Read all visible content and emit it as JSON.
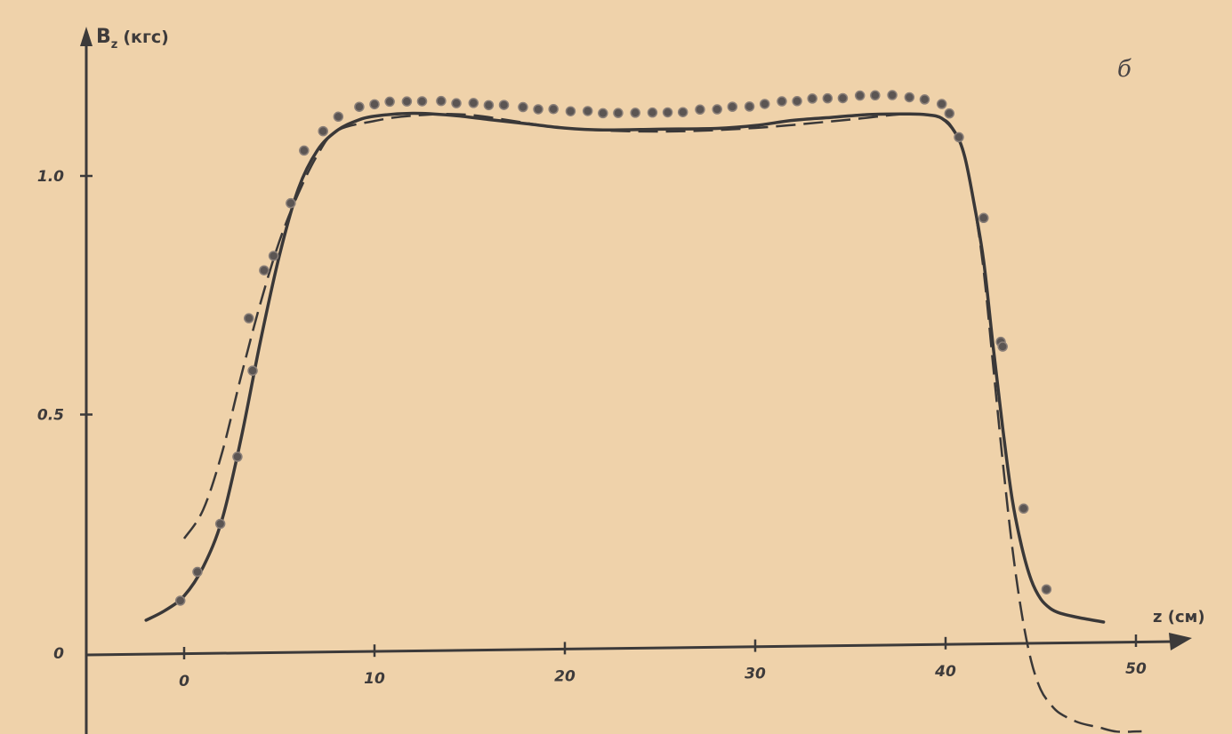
{
  "chart_data": {
    "type": "line",
    "panel_label": "б",
    "ylabel": "B",
    "ylabel_sub": "z",
    "ylabel_unit": "(кгс)",
    "xlabel": "z (см)",
    "xlim": [
      -5,
      52
    ],
    "ylim": [
      -0.17,
      1.3
    ],
    "x_ticks": [
      0,
      10,
      20,
      30,
      40,
      50
    ],
    "x_tick_labels": [
      "0",
      "10",
      "20",
      "30",
      "40",
      "50"
    ],
    "y_ticks": [
      0,
      0.5,
      1.0
    ],
    "y_tick_labels": [
      "0",
      "0.5",
      "1.0"
    ],
    "grid": false,
    "series": [
      {
        "style": "solid",
        "x": [
          -2,
          -1,
          0,
          1,
          2,
          3,
          4,
          5,
          6,
          7,
          8,
          9,
          10,
          12,
          14,
          16,
          18,
          20,
          22,
          25,
          28,
          30,
          32,
          34,
          36,
          38,
          39,
          39.8,
          40.5,
          41,
          41.5,
          42,
          42.5,
          43,
          43.5,
          44,
          44.5,
          45,
          45.5,
          46,
          47,
          48.3
        ],
        "y": [
          0.07,
          0.09,
          0.12,
          0.18,
          0.28,
          0.45,
          0.65,
          0.83,
          0.97,
          1.05,
          1.09,
          1.11,
          1.12,
          1.125,
          1.12,
          1.11,
          1.1,
          1.09,
          1.085,
          1.085,
          1.085,
          1.09,
          1.1,
          1.105,
          1.11,
          1.11,
          1.108,
          1.1,
          1.07,
          1.02,
          0.92,
          0.8,
          0.62,
          0.45,
          0.3,
          0.2,
          0.13,
          0.09,
          0.07,
          0.06,
          0.05,
          0.04
        ]
      },
      {
        "style": "dashed",
        "x": [
          0,
          1,
          2,
          3,
          4,
          5,
          6,
          7,
          8,
          10,
          12,
          15,
          20,
          25,
          30,
          35,
          38,
          39.8,
          40.5,
          41,
          41.5,
          42,
          42.5,
          43,
          43.5,
          44,
          44.5,
          45,
          45.5,
          46,
          47,
          48,
          49,
          50.3
        ],
        "y": [
          0.24,
          0.3,
          0.42,
          0.58,
          0.73,
          0.86,
          0.96,
          1.04,
          1.09,
          1.11,
          1.12,
          1.12,
          1.09,
          1.08,
          1.085,
          1.1,
          1.11,
          1.1,
          1.07,
          1.02,
          0.92,
          0.78,
          0.58,
          0.38,
          0.2,
          0.06,
          -0.04,
          -0.1,
          -0.13,
          -0.15,
          -0.17,
          -0.18,
          -0.19,
          -0.19
        ]
      },
      {
        "style": "points",
        "x": [
          -0.2,
          0.7,
          1.9,
          2.8,
          3.4,
          3.6,
          4.2,
          4.7,
          5.6,
          6.3,
          7.3,
          8.1,
          9.2,
          10.0,
          10.8,
          11.7,
          12.5,
          13.5,
          14.3,
          15.2,
          16.0,
          16.8,
          17.8,
          18.6,
          19.4,
          20.3,
          21.2,
          22.0,
          22.8,
          23.7,
          24.6,
          25.4,
          26.2,
          27.1,
          28.0,
          28.8,
          29.7,
          30.5,
          31.4,
          32.2,
          33.0,
          33.8,
          34.6,
          35.5,
          36.3,
          37.2,
          38.1,
          38.9,
          39.8,
          40.2,
          40.7,
          42.0,
          42.9,
          43.0,
          44.1,
          45.3
        ],
        "y": [
          0.11,
          0.17,
          0.27,
          0.41,
          0.7,
          0.59,
          0.8,
          0.83,
          0.94,
          1.05,
          1.09,
          1.12,
          1.14,
          1.145,
          1.15,
          1.15,
          1.15,
          1.15,
          1.145,
          1.145,
          1.14,
          1.14,
          1.135,
          1.13,
          1.13,
          1.125,
          1.125,
          1.12,
          1.12,
          1.12,
          1.12,
          1.12,
          1.12,
          1.125,
          1.125,
          1.13,
          1.13,
          1.135,
          1.14,
          1.14,
          1.145,
          1.145,
          1.145,
          1.15,
          1.15,
          1.15,
          1.145,
          1.14,
          1.13,
          1.11,
          1.06,
          0.89,
          0.63,
          0.62,
          0.28,
          0.11
        ]
      }
    ]
  }
}
